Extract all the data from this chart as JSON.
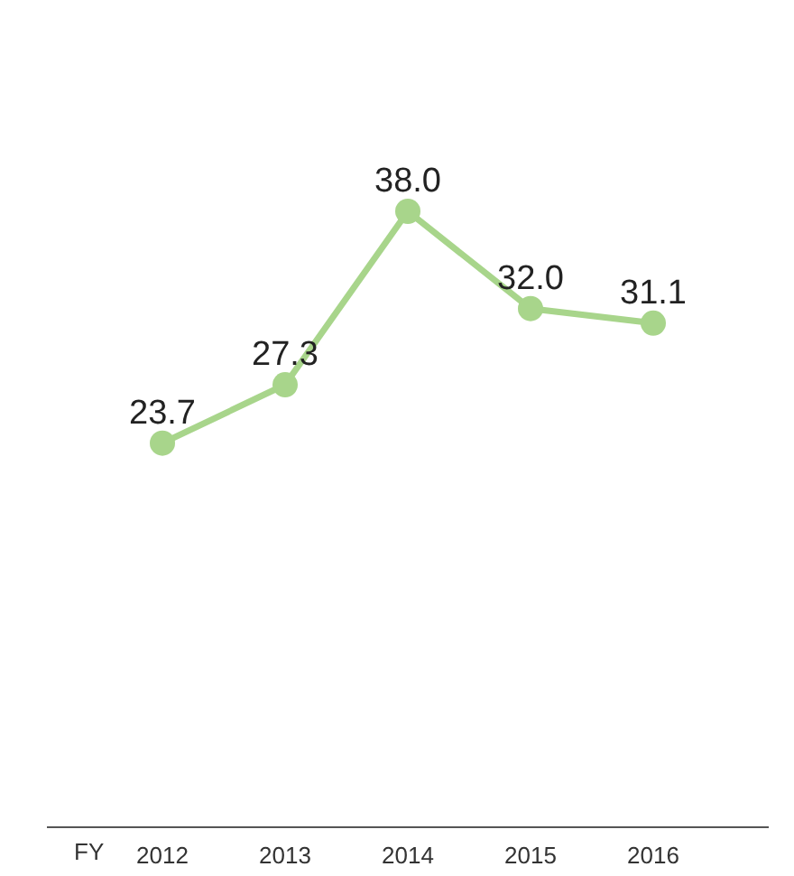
{
  "chart_data": {
    "type": "line",
    "xlabel": "FY",
    "categories": [
      "2012",
      "2013",
      "2014",
      "2015",
      "2016"
    ],
    "values": [
      23.7,
      27.3,
      38.0,
      32.0,
      31.1
    ],
    "value_labels": [
      "23.7",
      "27.3",
      "38.0",
      "32.0",
      "31.1"
    ],
    "color": "#a8d58b",
    "tick_labels": "x",
    "marker": "circle",
    "line_style": "solid"
  }
}
